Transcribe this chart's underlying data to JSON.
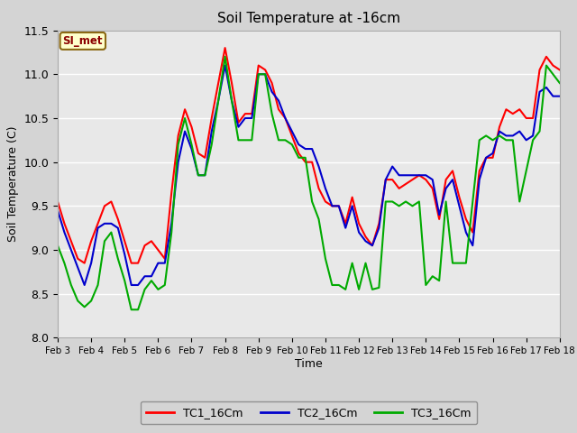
{
  "title": "Soil Temperature at -16cm",
  "xlabel": "Time",
  "ylabel": "Soil Temperature (C)",
  "ylim": [
    8.0,
    11.5
  ],
  "xlim": [
    0,
    15
  ],
  "xtick_labels": [
    "Feb 3",
    "Feb 4",
    "Feb 5",
    "Feb 6",
    "Feb 7",
    "Feb 8",
    "Feb 9",
    "Feb 10",
    "Feb 11",
    "Feb 12",
    "Feb 13",
    "Feb 14",
    "Feb 15",
    "Feb 16",
    "Feb 17",
    "Feb 18"
  ],
  "ytick_values": [
    8.0,
    8.5,
    9.0,
    9.5,
    10.0,
    10.5,
    11.0,
    11.5
  ],
  "legend_label": "SI_met",
  "series_labels": [
    "TC1_16Cm",
    "TC2_16Cm",
    "TC3_16Cm"
  ],
  "series_colors": [
    "#ff0000",
    "#0000cc",
    "#00aa00"
  ],
  "fig_facecolor": "#d4d4d4",
  "axes_facecolor": "#e8e8e8",
  "line_width": 1.5,
  "TC1_x": [
    0,
    0.2,
    0.4,
    0.6,
    0.8,
    1.0,
    1.2,
    1.4,
    1.6,
    1.8,
    2.0,
    2.2,
    2.4,
    2.6,
    2.8,
    3.0,
    3.2,
    3.4,
    3.6,
    3.8,
    4.0,
    4.2,
    4.4,
    4.6,
    4.8,
    5.0,
    5.2,
    5.4,
    5.6,
    5.8,
    6.0,
    6.2,
    6.4,
    6.6,
    6.8,
    7.0,
    7.2,
    7.4,
    7.6,
    7.8,
    8.0,
    8.2,
    8.4,
    8.6,
    8.8,
    9.0,
    9.2,
    9.4,
    9.6,
    9.8,
    10.0,
    10.2,
    10.4,
    10.6,
    10.8,
    11.0,
    11.2,
    11.4,
    11.6,
    11.8,
    12.0,
    12.2,
    12.4,
    12.6,
    12.8,
    13.0,
    13.2,
    13.4,
    13.6,
    13.8,
    14.0,
    14.2,
    14.4,
    14.6,
    14.8,
    15.0
  ],
  "TC1_y": [
    9.55,
    9.3,
    9.1,
    8.9,
    8.85,
    9.1,
    9.3,
    9.5,
    9.55,
    9.35,
    9.1,
    8.85,
    8.85,
    9.05,
    9.1,
    9.0,
    8.9,
    9.65,
    10.3,
    10.6,
    10.4,
    10.1,
    10.05,
    10.5,
    10.9,
    11.3,
    10.9,
    10.45,
    10.55,
    10.55,
    11.1,
    11.05,
    10.9,
    10.6,
    10.5,
    10.3,
    10.1,
    10.0,
    10.0,
    9.7,
    9.55,
    9.5,
    9.5,
    9.3,
    9.6,
    9.3,
    9.15,
    9.05,
    9.3,
    9.8,
    9.8,
    9.7,
    9.75,
    9.8,
    9.85,
    9.8,
    9.7,
    9.35,
    9.8,
    9.9,
    9.6,
    9.35,
    9.2,
    9.9,
    10.05,
    10.05,
    10.4,
    10.6,
    10.55,
    10.6,
    10.5,
    10.5,
    11.05,
    11.2,
    11.1,
    11.05
  ],
  "TC2_x": [
    0,
    0.2,
    0.4,
    0.6,
    0.8,
    1.0,
    1.2,
    1.4,
    1.6,
    1.8,
    2.0,
    2.2,
    2.4,
    2.6,
    2.8,
    3.0,
    3.2,
    3.4,
    3.6,
    3.8,
    4.0,
    4.2,
    4.4,
    4.6,
    4.8,
    5.0,
    5.2,
    5.4,
    5.6,
    5.8,
    6.0,
    6.2,
    6.4,
    6.6,
    6.8,
    7.0,
    7.2,
    7.4,
    7.6,
    7.8,
    8.0,
    8.2,
    8.4,
    8.6,
    8.8,
    9.0,
    9.2,
    9.4,
    9.6,
    9.8,
    10.0,
    10.2,
    10.4,
    10.6,
    10.8,
    11.0,
    11.2,
    11.4,
    11.6,
    11.8,
    12.0,
    12.2,
    12.4,
    12.6,
    12.8,
    13.0,
    13.2,
    13.4,
    13.6,
    13.8,
    14.0,
    14.2,
    14.4,
    14.6,
    14.8,
    15.0
  ],
  "TC2_y": [
    9.45,
    9.2,
    9.0,
    8.8,
    8.6,
    8.85,
    9.25,
    9.3,
    9.3,
    9.25,
    8.95,
    8.6,
    8.6,
    8.7,
    8.7,
    8.85,
    8.85,
    9.3,
    10.0,
    10.35,
    10.15,
    9.85,
    9.85,
    10.35,
    10.7,
    11.1,
    10.7,
    10.4,
    10.5,
    10.5,
    11.0,
    11.0,
    10.8,
    10.7,
    10.5,
    10.35,
    10.2,
    10.15,
    10.15,
    9.95,
    9.7,
    9.5,
    9.5,
    9.25,
    9.5,
    9.2,
    9.1,
    9.05,
    9.25,
    9.8,
    9.95,
    9.85,
    9.85,
    9.85,
    9.85,
    9.85,
    9.8,
    9.4,
    9.7,
    9.8,
    9.5,
    9.2,
    9.05,
    9.8,
    10.05,
    10.1,
    10.35,
    10.3,
    10.3,
    10.35,
    10.25,
    10.3,
    10.8,
    10.85,
    10.75,
    10.75
  ],
  "TC3_x": [
    0,
    0.2,
    0.4,
    0.6,
    0.8,
    1.0,
    1.2,
    1.4,
    1.6,
    1.8,
    2.0,
    2.2,
    2.4,
    2.6,
    2.8,
    3.0,
    3.2,
    3.4,
    3.6,
    3.8,
    4.0,
    4.2,
    4.4,
    4.6,
    4.8,
    5.0,
    5.2,
    5.4,
    5.6,
    5.8,
    6.0,
    6.2,
    6.4,
    6.6,
    6.8,
    7.0,
    7.2,
    7.4,
    7.6,
    7.8,
    8.0,
    8.2,
    8.4,
    8.6,
    8.8,
    9.0,
    9.2,
    9.4,
    9.6,
    9.8,
    10.0,
    10.2,
    10.4,
    10.6,
    10.8,
    11.0,
    11.2,
    11.4,
    11.6,
    11.8,
    12.0,
    12.2,
    12.4,
    12.6,
    12.8,
    13.0,
    13.2,
    13.4,
    13.6,
    13.8,
    14.0,
    14.2,
    14.4,
    14.6,
    14.8,
    15.0
  ],
  "TC3_y": [
    9.05,
    8.85,
    8.6,
    8.42,
    8.35,
    8.42,
    8.6,
    9.1,
    9.2,
    8.9,
    8.65,
    8.32,
    8.32,
    8.55,
    8.65,
    8.55,
    8.6,
    9.2,
    10.2,
    10.5,
    10.2,
    9.85,
    9.85,
    10.2,
    10.7,
    11.2,
    10.7,
    10.25,
    10.25,
    10.25,
    11.0,
    11.0,
    10.55,
    10.25,
    10.25,
    10.2,
    10.05,
    10.05,
    9.55,
    9.35,
    8.9,
    8.6,
    8.6,
    8.55,
    8.85,
    8.55,
    8.85,
    8.55,
    8.57,
    9.55,
    9.55,
    9.5,
    9.55,
    9.5,
    9.55,
    8.6,
    8.7,
    8.65,
    9.55,
    8.85,
    8.85,
    8.85,
    9.55,
    10.25,
    10.3,
    10.25,
    10.3,
    10.25,
    10.25,
    9.55,
    9.9,
    10.25,
    10.35,
    11.1,
    11.0,
    10.9
  ]
}
